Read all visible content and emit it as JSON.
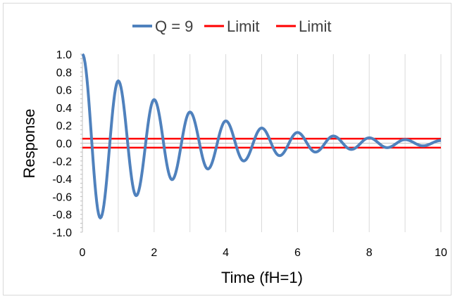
{
  "chart_data": {
    "type": "line",
    "title": "",
    "xlabel": "Time (fH=1)",
    "ylabel": "Response",
    "xlim": [
      0,
      10
    ],
    "ylim": [
      -1.0,
      1.0
    ],
    "x_ticks": [
      "0",
      "2",
      "4",
      "6",
      "8",
      "10"
    ],
    "y_ticks": [
      "1.0",
      "0.8",
      "0.6",
      "0.4",
      "0.2",
      "0.0",
      "-0.2",
      "-0.4",
      "-0.6",
      "-0.8",
      "-1.0"
    ],
    "grid": "vertical gridlines at each unit of x",
    "legend_position": "top",
    "series": [
      {
        "name": "Q = 9",
        "color": "#4f81bd",
        "description_values": {
          "x": [
            0,
            0.5,
            1,
            1.5,
            2,
            2.5,
            3,
            3.5,
            4,
            4.5,
            5,
            5.5,
            6,
            6.5,
            7,
            7.5,
            8,
            8.5,
            9,
            9.5,
            10
          ],
          "y": [
            1.0,
            -0.84,
            0.7,
            -0.59,
            0.49,
            -0.41,
            0.35,
            -0.29,
            0.25,
            -0.2,
            0.17,
            -0.14,
            0.12,
            -0.1,
            0.08,
            -0.07,
            0.06,
            -0.05,
            0.04,
            -0.03,
            0.03
          ]
        }
      },
      {
        "name": "Limit",
        "color": "#ff0000",
        "y": 0.05
      },
      {
        "name": "Limit",
        "color": "#ff0000",
        "y": -0.05
      }
    ]
  }
}
